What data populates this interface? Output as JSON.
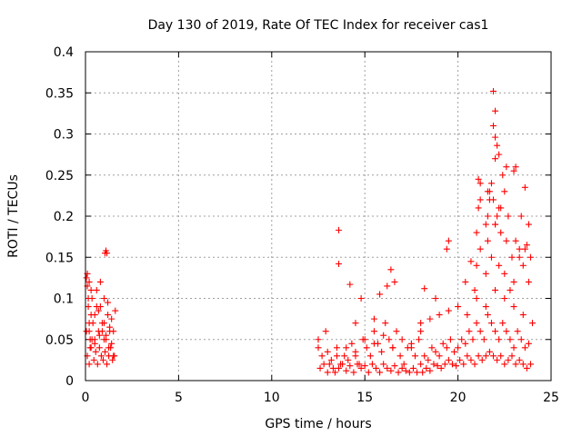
{
  "chart_data": {
    "type": "scatter",
    "title": "Day 130 of 2019, Rate Of TEC Index for receiver cas1",
    "xlabel": "GPS time / hours",
    "ylabel": "ROTI / TECUs",
    "xlim": [
      0,
      25
    ],
    "ylim": [
      0,
      0.4
    ],
    "grid": true,
    "marker": "+",
    "series_color": "#ff0000",
    "x_ticks": [
      "0",
      "5",
      "10",
      "15",
      "20",
      "25"
    ],
    "y_ticks": [
      "0",
      "0.05",
      "0.1",
      "0.15",
      "0.2",
      "0.25",
      "0.3",
      "0.35",
      "0.4"
    ],
    "series": [
      {
        "name": "ROTI",
        "x": [
          0.05,
          0.1,
          0.15,
          0.2,
          0.25,
          0.3,
          0.35,
          0.4,
          0.5,
          0.6,
          0.7,
          0.8,
          0.9,
          1.0,
          1.1,
          1.2,
          1.3,
          1.4,
          1.5,
          1.6,
          0.1,
          0.2,
          0.3,
          0.45,
          0.55,
          0.65,
          0.75,
          0.85,
          0.95,
          1.05,
          1.15,
          1.25,
          1.35,
          1.45,
          1.55,
          0.05,
          0.2,
          0.35,
          0.5,
          0.7,
          0.9,
          1.1,
          1.3,
          1.5,
          0.15,
          0.3,
          0.6,
          0.8,
          1.0,
          1.2,
          1.4,
          0.1,
          0.2,
          1.05,
          1.1,
          1.15,
          0.25,
          0.5,
          0.75,
          1.0,
          1.25,
          12.5,
          12.7,
          12.9,
          13.1,
          13.3,
          13.5,
          13.7,
          13.9,
          14.1,
          14.3,
          14.5,
          14.7,
          14.9,
          15.1,
          15.3,
          15.5,
          15.7,
          15.9,
          16.1,
          16.3,
          16.5,
          16.7,
          16.9,
          17.1,
          17.3,
          17.5,
          17.7,
          17.9,
          12.6,
          12.8,
          13.0,
          13.2,
          13.4,
          13.6,
          13.8,
          14.0,
          14.2,
          14.4,
          14.6,
          14.8,
          15.0,
          15.2,
          15.4,
          15.6,
          15.8,
          16.0,
          16.2,
          16.4,
          16.6,
          16.8,
          17.0,
          17.2,
          17.4,
          17.6,
          17.8,
          12.5,
          13.0,
          13.5,
          14.0,
          14.5,
          15.0,
          15.5,
          16.0,
          16.5,
          17.0,
          17.5,
          18.0,
          13.6,
          13.6,
          14.2,
          14.5,
          14.8,
          15.5,
          15.8,
          16.2,
          16.6,
          16.4,
          18.0,
          18.2,
          18.4,
          18.6,
          18.8,
          19.0,
          19.2,
          19.4,
          19.6,
          19.8,
          20.0,
          20.2,
          20.4,
          20.6,
          20.8,
          21.0,
          21.2,
          21.4,
          21.6,
          21.8,
          22.0,
          22.2,
          22.4,
          22.6,
          22.8,
          23.0,
          23.2,
          23.4,
          23.6,
          23.8,
          18.1,
          18.3,
          18.5,
          18.7,
          18.9,
          19.1,
          19.3,
          19.5,
          19.7,
          19.9,
          20.1,
          20.3,
          20.5,
          20.7,
          20.9,
          21.1,
          21.3,
          21.5,
          21.7,
          21.9,
          22.1,
          22.3,
          22.5,
          22.7,
          22.9,
          23.1,
          23.3,
          23.5,
          23.7,
          23.9,
          18.0,
          18.5,
          19.0,
          19.5,
          20.0,
          20.5,
          21.0,
          21.5,
          22.0,
          22.5,
          23.0,
          23.5,
          24.0,
          18.2,
          18.8,
          19.4,
          19.5,
          20.4,
          20.7,
          20.9,
          21.0,
          21.2,
          21.5,
          21.6,
          21.8,
          22.0,
          22.2,
          22.5,
          22.8,
          23.0,
          23.3,
          23.6,
          23.8,
          21.0,
          21.1,
          21.2,
          21.5,
          21.6,
          21.7,
          21.8,
          21.9,
          22.0,
          22.1,
          22.2,
          22.3,
          22.5,
          22.6,
          22.7,
          22.9,
          23.1,
          23.3,
          23.5,
          23.7,
          21.9,
          21.9,
          22.0,
          22.0,
          22.1,
          22.0,
          22.2,
          21.1,
          21.2,
          22.4,
          22.6,
          23.0,
          23.1,
          21.6,
          21.7,
          22.3,
          23.4,
          23.6,
          23.8,
          23.9
        ],
        "y": [
          0.125,
          0.13,
          0.09,
          0.06,
          0.04,
          0.08,
          0.1,
          0.07,
          0.05,
          0.11,
          0.085,
          0.09,
          0.06,
          0.07,
          0.05,
          0.08,
          0.06,
          0.045,
          0.03,
          0.085,
          0.03,
          0.02,
          0.04,
          0.025,
          0.035,
          0.02,
          0.04,
          0.03,
          0.025,
          0.035,
          0.02,
          0.03,
          0.04,
          0.025,
          0.03,
          0.06,
          0.07,
          0.05,
          0.08,
          0.06,
          0.07,
          0.055,
          0.065,
          0.06,
          0.1,
          0.11,
          0.09,
          0.12,
          0.1,
          0.095,
          0.075,
          0.115,
          0.12,
          0.155,
          0.158,
          0.155,
          0.05,
          0.045,
          0.055,
          0.05,
          0.04,
          0.05,
          0.03,
          0.06,
          0.02,
          0.015,
          0.04,
          0.02,
          0.03,
          0.025,
          0.045,
          0.03,
          0.02,
          0.05,
          0.04,
          0.03,
          0.06,
          0.045,
          0.035,
          0.07,
          0.05,
          0.04,
          0.06,
          0.03,
          0.02,
          0.04,
          0.045,
          0.03,
          0.05,
          0.015,
          0.02,
          0.01,
          0.025,
          0.01,
          0.015,
          0.02,
          0.012,
          0.018,
          0.01,
          0.02,
          0.015,
          0.018,
          0.01,
          0.02,
          0.015,
          0.01,
          0.02,
          0.015,
          0.012,
          0.018,
          0.01,
          0.015,
          0.012,
          0.01,
          0.015,
          0.01,
          0.04,
          0.035,
          0.03,
          0.04,
          0.035,
          0.05,
          0.045,
          0.055,
          0.04,
          0.05,
          0.04,
          0.06,
          0.183,
          0.142,
          0.117,
          0.07,
          0.1,
          0.075,
          0.105,
          0.115,
          0.12,
          0.135,
          0.02,
          0.03,
          0.025,
          0.04,
          0.035,
          0.03,
          0.045,
          0.04,
          0.05,
          0.035,
          0.04,
          0.05,
          0.045,
          0.06,
          0.05,
          0.07,
          0.06,
          0.05,
          0.08,
          0.07,
          0.06,
          0.05,
          0.07,
          0.06,
          0.05,
          0.04,
          0.06,
          0.05,
          0.04,
          0.045,
          0.01,
          0.015,
          0.012,
          0.02,
          0.018,
          0.015,
          0.02,
          0.025,
          0.02,
          0.018,
          0.025,
          0.02,
          0.03,
          0.025,
          0.02,
          0.03,
          0.025,
          0.03,
          0.035,
          0.03,
          0.025,
          0.03,
          0.02,
          0.025,
          0.03,
          0.02,
          0.025,
          0.02,
          0.015,
          0.02,
          0.07,
          0.075,
          0.08,
          0.085,
          0.09,
          0.08,
          0.1,
          0.09,
          0.11,
          0.1,
          0.09,
          0.08,
          0.07,
          0.112,
          0.1,
          0.16,
          0.17,
          0.12,
          0.145,
          0.11,
          0.14,
          0.16,
          0.13,
          0.17,
          0.15,
          0.19,
          0.14,
          0.13,
          0.11,
          0.12,
          0.15,
          0.16,
          0.12,
          0.18,
          0.21,
          0.22,
          0.19,
          0.2,
          0.23,
          0.24,
          0.22,
          0.19,
          0.2,
          0.21,
          0.18,
          0.23,
          0.17,
          0.2,
          0.15,
          0.17,
          0.16,
          0.14,
          0.165,
          0.352,
          0.31,
          0.328,
          0.296,
          0.286,
          0.27,
          0.275,
          0.245,
          0.24,
          0.25,
          0.26,
          0.255,
          0.26,
          0.23,
          0.22,
          0.21,
          0.2,
          0.235,
          0.19,
          0.15
        ]
      }
    ]
  }
}
